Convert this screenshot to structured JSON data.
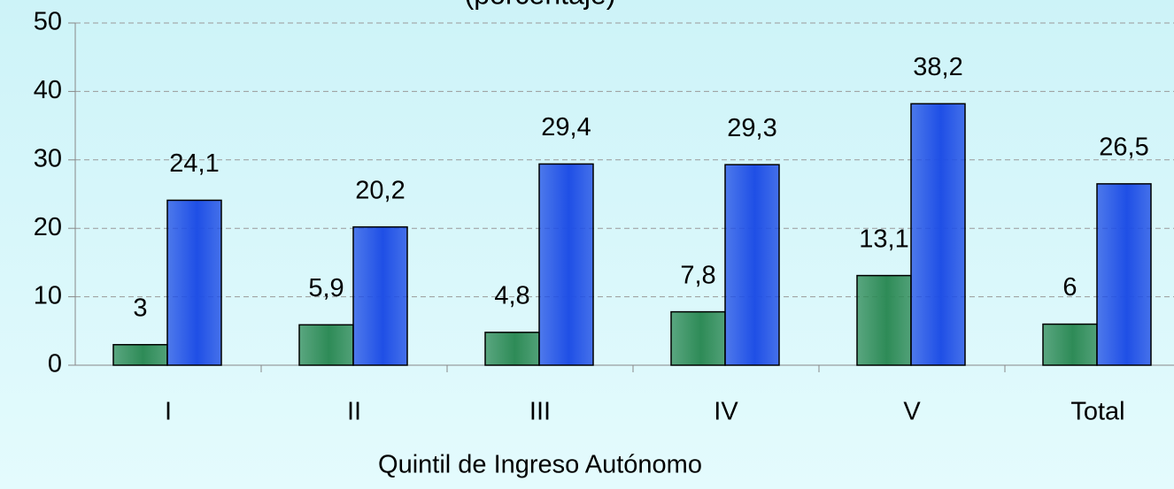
{
  "chart_data": {
    "type": "bar",
    "title": "(porcentaje)",
    "x_label": "Quintil de Ingreso Autónomo",
    "categories": [
      "I",
      "II",
      "III",
      "IV",
      "V",
      "Total"
    ],
    "series": [
      {
        "color": "#2e8b57",
        "values": [
          3,
          5.9,
          4.8,
          7.8,
          13.1,
          6
        ],
        "value_labels": [
          "3",
          "5,9",
          "4,8",
          "7,8",
          "13,1",
          "6"
        ]
      },
      {
        "color": "#1f4fe6",
        "values": [
          24.1,
          20.2,
          29.4,
          29.3,
          38.2,
          26.5
        ],
        "value_labels": [
          "24,1",
          "20,2",
          "29,4",
          "29,3",
          "38,2",
          "26,5"
        ]
      }
    ],
    "ylim": [
      0,
      50
    ],
    "yticks": [
      0,
      10,
      20,
      30,
      40,
      50
    ],
    "grid": true
  }
}
